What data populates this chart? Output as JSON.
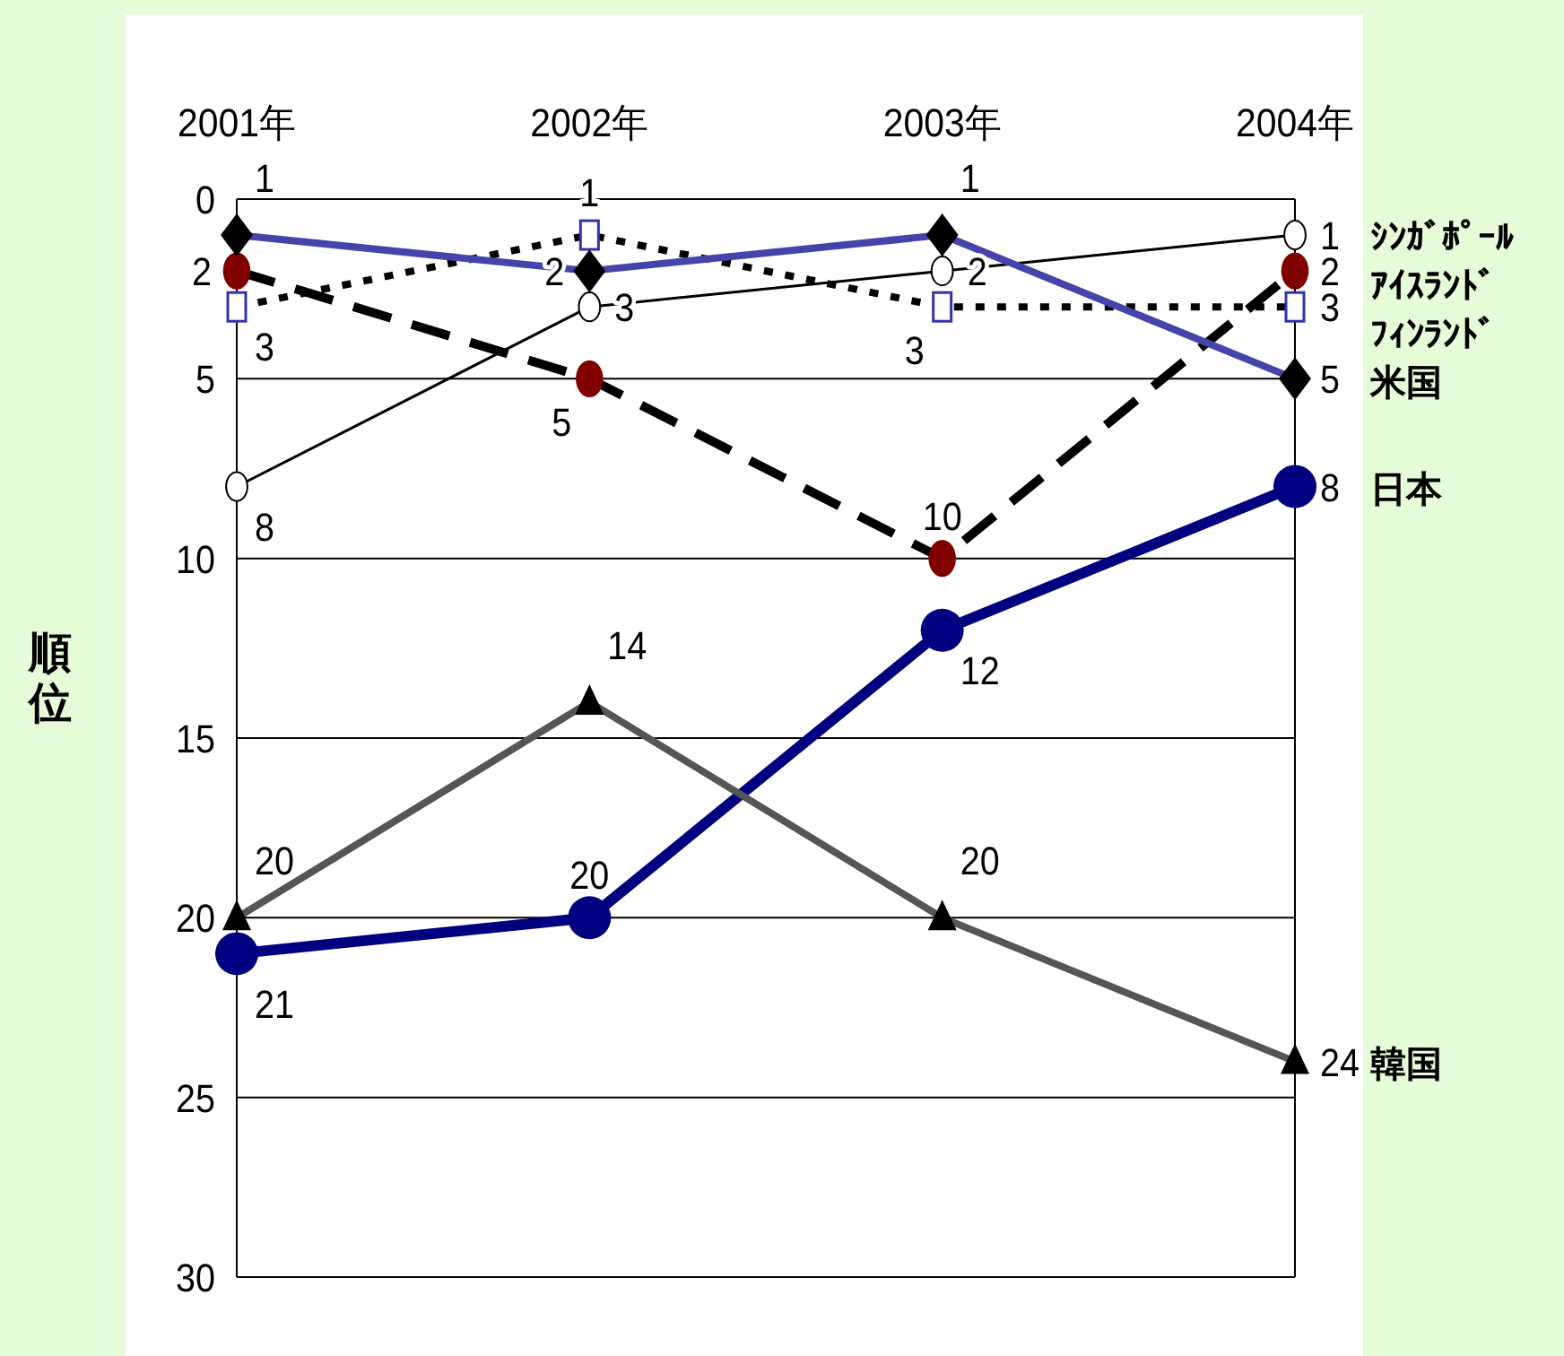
{
  "chart_data": {
    "type": "line",
    "ylabel": "順位",
    "categories": [
      "2001年",
      "2002年",
      "2003年",
      "2004年"
    ],
    "ylim": [
      30,
      0
    ],
    "yticks": [
      0,
      5,
      10,
      15,
      20,
      25,
      30
    ],
    "grid": "y",
    "data_labels": true,
    "series": [
      {
        "name": "ｼﾝｶﾞﾎﾟｰﾙ",
        "color": "#000000",
        "marker": "circle",
        "line_style": "solid",
        "values": [
          8,
          3,
          2,
          1
        ]
      },
      {
        "name": "ｱｲｽﾗﾝﾄﾞ",
        "color": "#800000",
        "marker": "circle",
        "line_style": "dashed",
        "values": [
          2,
          5,
          10,
          2
        ]
      },
      {
        "name": "ﾌｨﾝﾗﾝﾄﾞ",
        "color": "#3333aa",
        "marker": "square",
        "line_style": "dotted",
        "values": [
          3,
          1,
          3,
          3
        ]
      },
      {
        "name": "米国",
        "color": "#000000",
        "marker": "diamond",
        "line_style": "solid",
        "values": [
          1,
          2,
          1,
          5
        ]
      },
      {
        "name": "日本",
        "color": "#000080",
        "marker": "circle",
        "line_style": "solid",
        "values": [
          21,
          20,
          12,
          8
        ]
      },
      {
        "name": "韓国",
        "color": "#000000",
        "marker": "triangle",
        "line_style": "solid",
        "values": [
          20,
          14,
          20,
          24
        ]
      }
    ]
  }
}
